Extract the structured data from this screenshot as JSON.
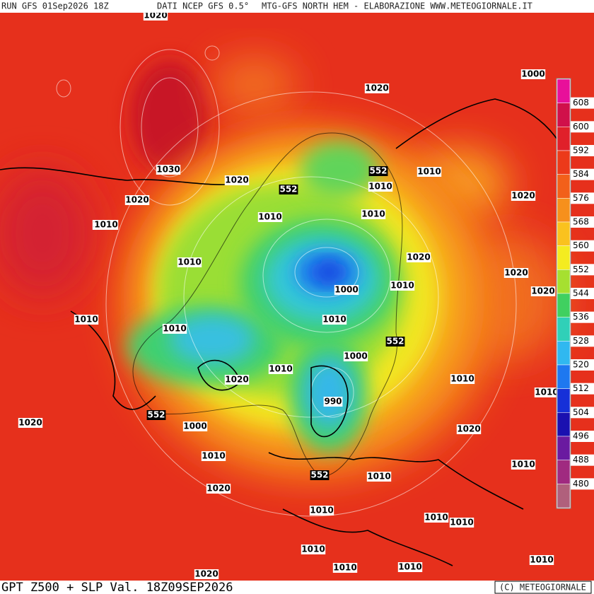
{
  "header": {
    "run": "RUN GFS 01Sep2026 18Z",
    "source": "DATI NCEP GFS 0.5°",
    "credit": "MTG-GFS NORTH HEM - ELABORAZIONE WWW.METEOGIORNALE.IT"
  },
  "footer": {
    "title": "GPT Z500 + SLP Val. 18Z09SEP2026",
    "copyright": "(C) METEOGIORNALE"
  },
  "colorbar": {
    "labels": [
      608,
      600,
      592,
      584,
      576,
      568,
      560,
      552,
      544,
      536,
      528,
      520,
      512,
      504,
      496,
      488,
      480
    ],
    "colors": [
      "#e8109a",
      "#d0104a",
      "#e0202a",
      "#ec3a1a",
      "#f2601a",
      "#f6901c",
      "#fac21e",
      "#f4ec20",
      "#a6e030",
      "#40d060",
      "#30d0b8",
      "#30b8f0",
      "#1e78f0",
      "#1630d8",
      "#1a10b0",
      "#6a1aa0",
      "#a02a80",
      "#b0607c"
    ]
  },
  "slp_labels": [
    1020,
    1020,
    1000,
    1030,
    1020,
    1020,
    1010,
    1010,
    1020,
    1020,
    1010,
    1010,
    1010,
    1020,
    1020,
    1000,
    1010,
    1020,
    1010,
    1010,
    1010,
    1000,
    1010,
    1020,
    1010,
    990,
    1010,
    1000,
    1020,
    1020,
    1010,
    1010,
    1010,
    1020,
    1010,
    1010,
    1010,
    1010,
    1010,
    1010,
    1010,
    1010,
    1020
  ],
  "z500_labels": [
    552,
    552,
    552,
    552,
    552
  ]
}
